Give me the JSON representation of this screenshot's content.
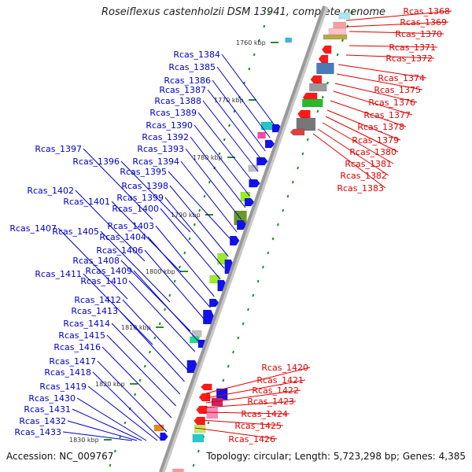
{
  "title": "Roseiflexus castenholzii DSM 13941, complete genome",
  "footer": {
    "accession": "Accession: NC_009767",
    "summary": "Topology: circular; Length: 5,723,298 bp; Genes: 4,385"
  },
  "colors": {
    "forward_label": "#0000cc",
    "reverse_label": "#dd0000",
    "backbone": "#9a9a9a",
    "tick": "#2a8a2a",
    "forward_gene": "#1111ee",
    "reverse_gene": "#ff1a1a"
  },
  "kbp_ticks": [
    "1760 kbp",
    "1770 kbp",
    "1780 kbp",
    "1790 kbp",
    "1800 kbp",
    "1810 kbp",
    "1820 kbp",
    "1830 kbp"
  ],
  "reverse_labels_top": [
    "Rcas_1368",
    "Rcas_1369",
    "Rcas_1370",
    "Rcas_1371",
    "Rcas_1372",
    "Rcas_1374",
    "Rcas_1375",
    "Rcas_1376",
    "Rcas_1377",
    "Rcas_1378",
    "Rcas_1379",
    "Rcas_1380",
    "Rcas_1381",
    "Rcas_1382",
    "Rcas_1383"
  ],
  "forward_labels": [
    "Rcas_1384",
    "Rcas_1385",
    "Rcas_1386",
    "Rcas_1387",
    "Rcas_1388",
    "Rcas_1389",
    "Rcas_1390",
    "Rcas_1392",
    "Rcas_1393",
    "Rcas_1397",
    "Rcas_1394",
    "Rcas_1396",
    "Rcas_1395",
    "Rcas_1398",
    "Rcas_1402",
    "Rcas_1399",
    "Rcas_1401",
    "Rcas_1400",
    "Rcas_1403",
    "Rcas_1407",
    "Rcas_1405",
    "Rcas_1404",
    "Rcas_1406",
    "Rcas_1408",
    "Rcas_1409",
    "Rcas_1411",
    "Rcas_1410",
    "Rcas_1412",
    "Rcas_1413",
    "Rcas_1414",
    "Rcas_1415",
    "Rcas_1416",
    "Rcas_1417",
    "Rcas_1418",
    "Rcas_1419",
    "Rcas_1430",
    "Rcas_1431",
    "Rcas_1432",
    "Rcas_1433"
  ],
  "reverse_labels_bottom": [
    "Rcas_1420",
    "Rcas_1421",
    "Rcas_1422",
    "Rcas_1423",
    "Rcas_1424",
    "Rcas_1425",
    "Rcas_1426"
  ]
}
